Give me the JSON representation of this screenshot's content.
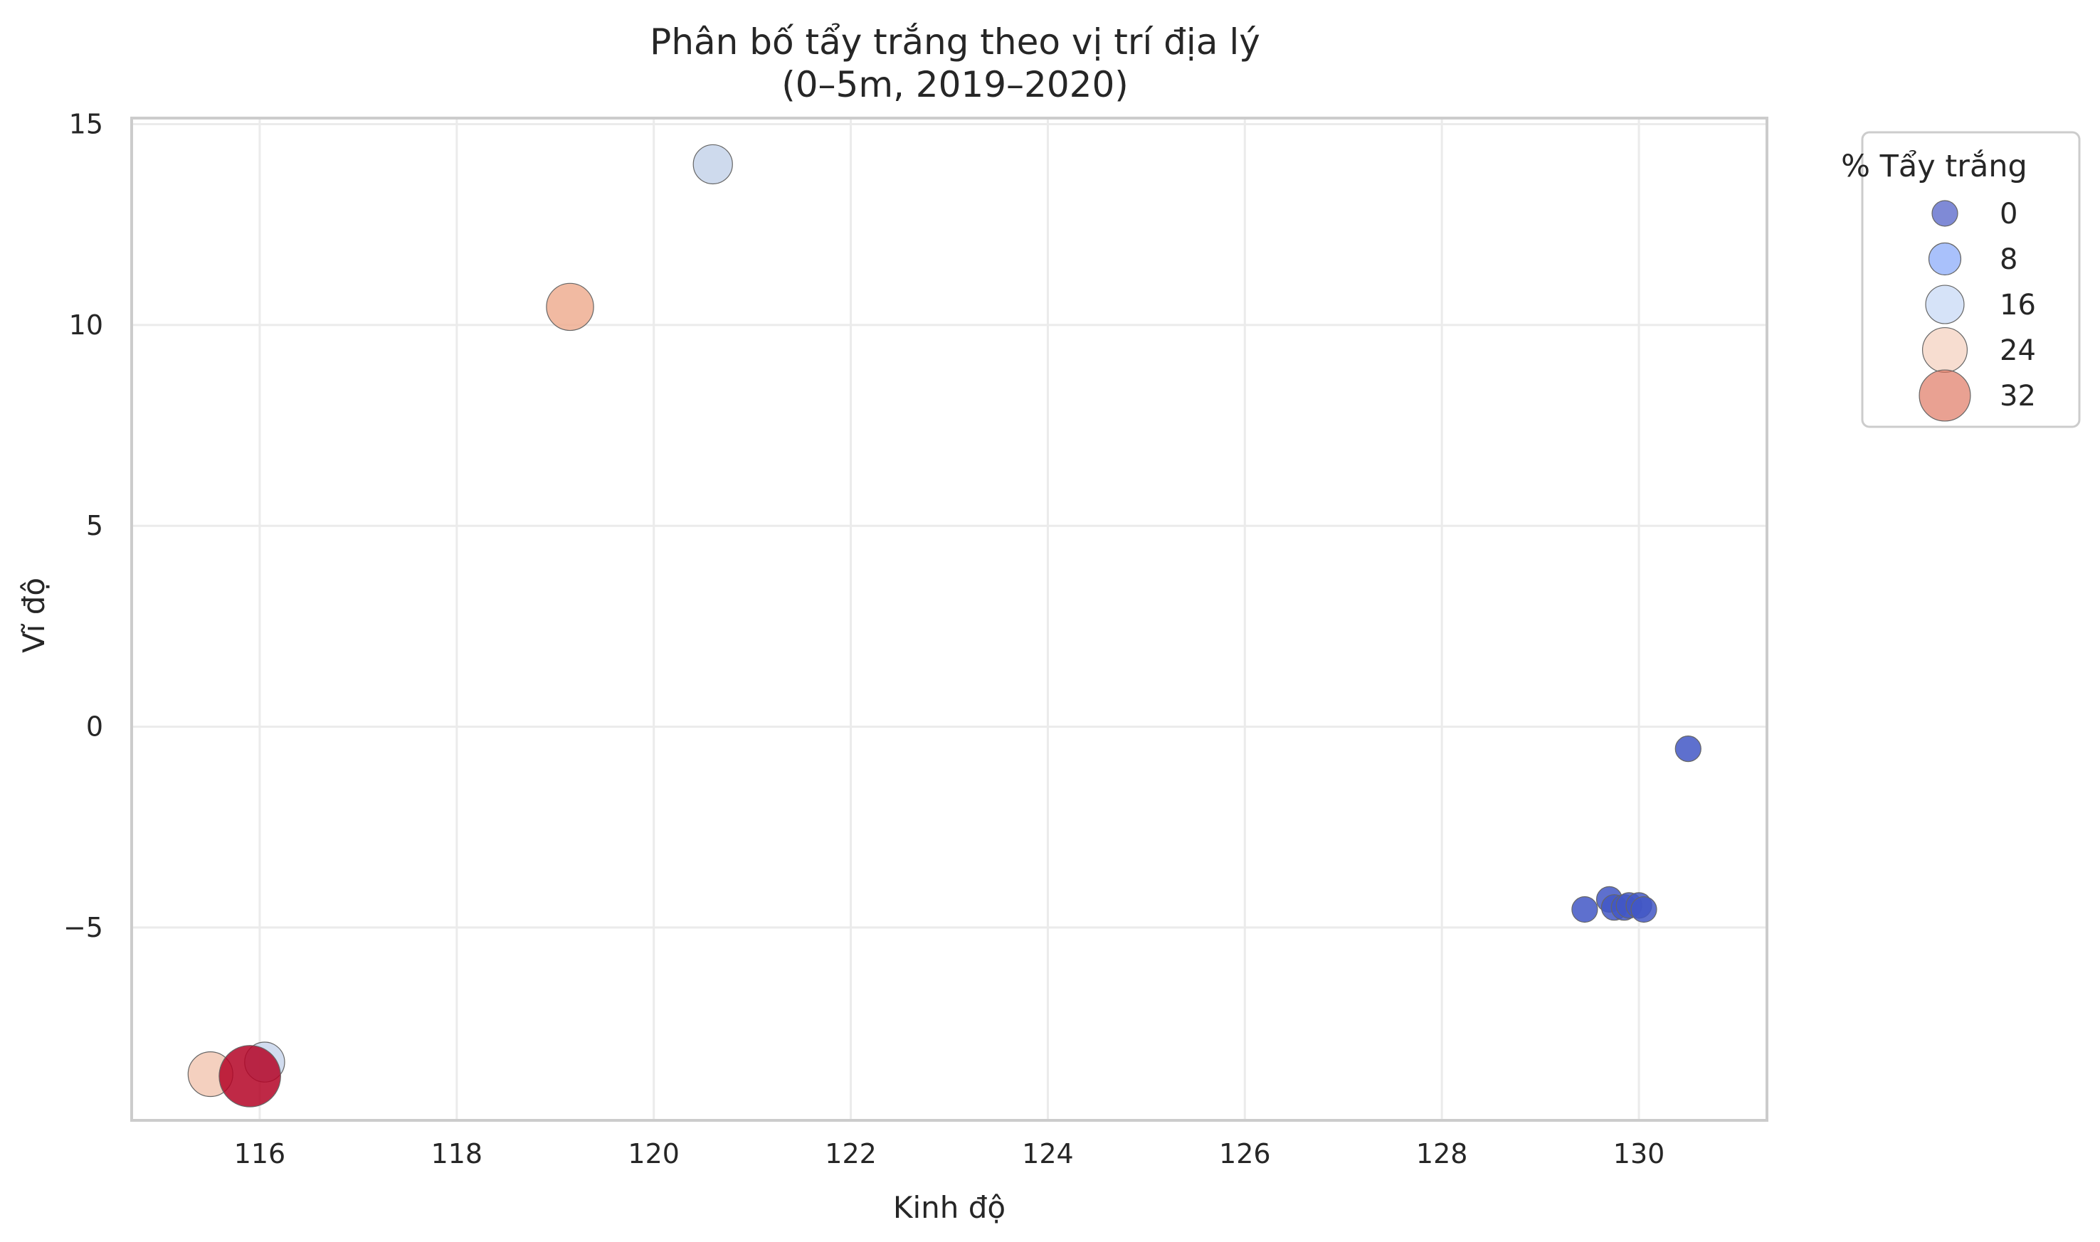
{
  "chart_data": {
    "type": "scatter",
    "title": "Phân bố tẩy trắng theo vị trí địa lý",
    "subtitle": "(0–5m, 2019–2020)",
    "xlabel": "Kinh độ",
    "ylabel": "Vĩ độ",
    "xlim": [
      114.7,
      131.3
    ],
    "ylim": [
      -9.8,
      15.15
    ],
    "xticks": [
      116,
      118,
      120,
      122,
      124,
      126,
      128,
      130
    ],
    "yticks": [
      -5,
      0,
      5,
      10,
      15
    ],
    "ytick_labels": [
      "−5",
      "0",
      "5",
      "10",
      "15"
    ],
    "grid": true,
    "legend": {
      "title": "% Tẩy trắng",
      "location": "outside-top-right",
      "entries": [
        {
          "label": "0",
          "value": 0,
          "color": "#3b4cc0"
        },
        {
          "label": "8",
          "value": 8,
          "color": "#7b9ff9"
        },
        {
          "label": "16",
          "value": 16,
          "color": "#c0d4f5"
        },
        {
          "label": "24",
          "value": 24,
          "color": "#f2cbb7"
        },
        {
          "label": "32",
          "value": 32,
          "color": "#dd6f58"
        }
      ]
    },
    "points": [
      {
        "x": 120.6,
        "y": 14.0,
        "bleaching": 17,
        "color": "#c5d3ea"
      },
      {
        "x": 119.15,
        "y": 10.45,
        "bleaching": 27,
        "color": "#efae92"
      },
      {
        "x": 130.5,
        "y": -0.55,
        "bleaching": 0,
        "color": "#4257c6"
      },
      {
        "x": 129.45,
        "y": -4.55,
        "bleaching": 0,
        "color": "#4257c6"
      },
      {
        "x": 129.7,
        "y": -4.3,
        "bleaching": 0,
        "color": "#4257c6"
      },
      {
        "x": 129.75,
        "y": -4.5,
        "bleaching": 0,
        "color": "#4257c6"
      },
      {
        "x": 129.85,
        "y": -4.5,
        "bleaching": 0,
        "color": "#4257c6"
      },
      {
        "x": 129.9,
        "y": -4.45,
        "bleaching": 0,
        "color": "#4257c6"
      },
      {
        "x": 130.0,
        "y": -4.45,
        "bleaching": 0,
        "color": "#4257c6"
      },
      {
        "x": 130.05,
        "y": -4.55,
        "bleaching": 0,
        "color": "#4257c6"
      },
      {
        "x": 116.05,
        "y": -8.35,
        "bleaching": 18,
        "color": "#c9d6ec"
      },
      {
        "x": 115.5,
        "y": -8.65,
        "bleaching": 24,
        "color": "#f2c8b4"
      },
      {
        "x": 115.9,
        "y": -8.7,
        "bleaching": 45,
        "color": "#b40426"
      }
    ]
  }
}
